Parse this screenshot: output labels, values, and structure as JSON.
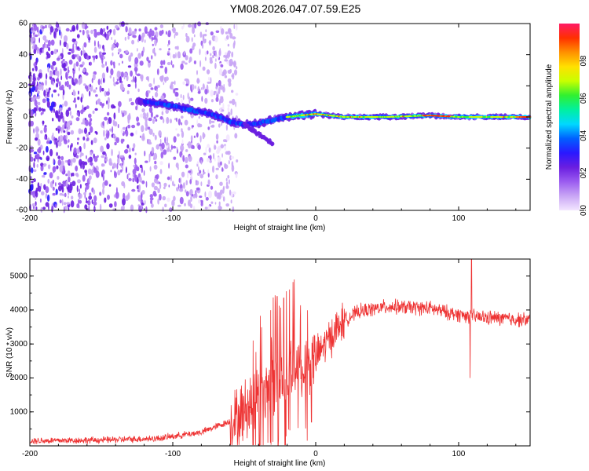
{
  "title": "YM08.2026.047.07.59.E25",
  "chart_data": [
    {
      "type": "heatmap",
      "title": "YM08.2026.047.07.59.E25",
      "xlabel": "Height of straight line (km)",
      "ylabel": "Frequency (Hz)",
      "xlim": [
        -200,
        150
      ],
      "ylim": [
        -60,
        60
      ],
      "xticks": [
        -200,
        -100,
        0,
        100
      ],
      "yticks": [
        -60,
        -40,
        -20,
        0,
        20,
        40,
        60
      ],
      "colorbar": {
        "label": "Normalized spectral amplitude",
        "range": [
          0,
          1
        ],
        "ticks": [
          0.0,
          0.2,
          0.4,
          0.6,
          0.8
        ],
        "colors": [
          "#f3e6ff",
          "#c9a6f5",
          "#9b5cf0",
          "#6a1ee0",
          "#2a18ff",
          "#0060ff",
          "#00d8ff",
          "#00f0a0",
          "#30f030",
          "#c8ff00",
          "#ffe000",
          "#ff9000",
          "#ff3000",
          "#ff1a66"
        ]
      },
      "features": {
        "noise_band_x": [
          -200,
          -55
        ],
        "doppler_trace": [
          {
            "x": -125,
            "y": 10
          },
          {
            "x": -110,
            "y": 9
          },
          {
            "x": -100,
            "y": 7
          },
          {
            "x": -90,
            "y": 5
          },
          {
            "x": -80,
            "y": 3
          },
          {
            "x": -70,
            "y": 1
          },
          {
            "x": -60,
            "y": -3
          },
          {
            "x": -50,
            "y": -5
          },
          {
            "x": -40,
            "y": -4
          },
          {
            "x": -30,
            "y": -2
          },
          {
            "x": -20,
            "y": 0
          },
          {
            "x": -10,
            "y": 1
          },
          {
            "x": 0,
            "y": 2
          },
          {
            "x": 20,
            "y": 0
          },
          {
            "x": 50,
            "y": 0
          },
          {
            "x": 80,
            "y": 1
          },
          {
            "x": 100,
            "y": 0
          },
          {
            "x": 130,
            "y": 0
          },
          {
            "x": 150,
            "y": 0
          }
        ],
        "branch": [
          {
            "x": -50,
            "y": -5
          },
          {
            "x": -40,
            "y": -10
          },
          {
            "x": -30,
            "y": -17
          }
        ]
      }
    },
    {
      "type": "line",
      "xlabel": "Height of straight line (km)",
      "ylabel": "SNR (10 * v/v)",
      "xlim": [
        -200,
        150
      ],
      "ylim": [
        0,
        5500
      ],
      "xticks": [
        -200,
        -100,
        0,
        100
      ],
      "yticks": [
        1000,
        2000,
        3000,
        4000,
        5000
      ],
      "color": "#ee3333",
      "envelope": [
        {
          "x": -200,
          "y": 150
        },
        {
          "x": -150,
          "y": 170
        },
        {
          "x": -110,
          "y": 220
        },
        {
          "x": -80,
          "y": 400
        },
        {
          "x": -55,
          "y": 800
        },
        {
          "x": -40,
          "y": 1500
        },
        {
          "x": -25,
          "y": 2000
        },
        {
          "x": -10,
          "y": 2300
        },
        {
          "x": 0,
          "y": 2600
        },
        {
          "x": 10,
          "y": 3200
        },
        {
          "x": 20,
          "y": 3700
        },
        {
          "x": 30,
          "y": 3950
        },
        {
          "x": 50,
          "y": 4100
        },
        {
          "x": 80,
          "y": 4050
        },
        {
          "x": 95,
          "y": 3900
        },
        {
          "x": 110,
          "y": 3800
        },
        {
          "x": 150,
          "y": 3700
        }
      ],
      "spikes": [
        {
          "x": -27,
          "y": 4400
        },
        {
          "x": -15,
          "y": 4900
        },
        {
          "x": 109,
          "y": 5500
        },
        {
          "x": 108,
          "y": 2000
        },
        {
          "x": -3,
          "y": 700
        },
        {
          "x": -26,
          "y": 200
        }
      ]
    }
  ]
}
